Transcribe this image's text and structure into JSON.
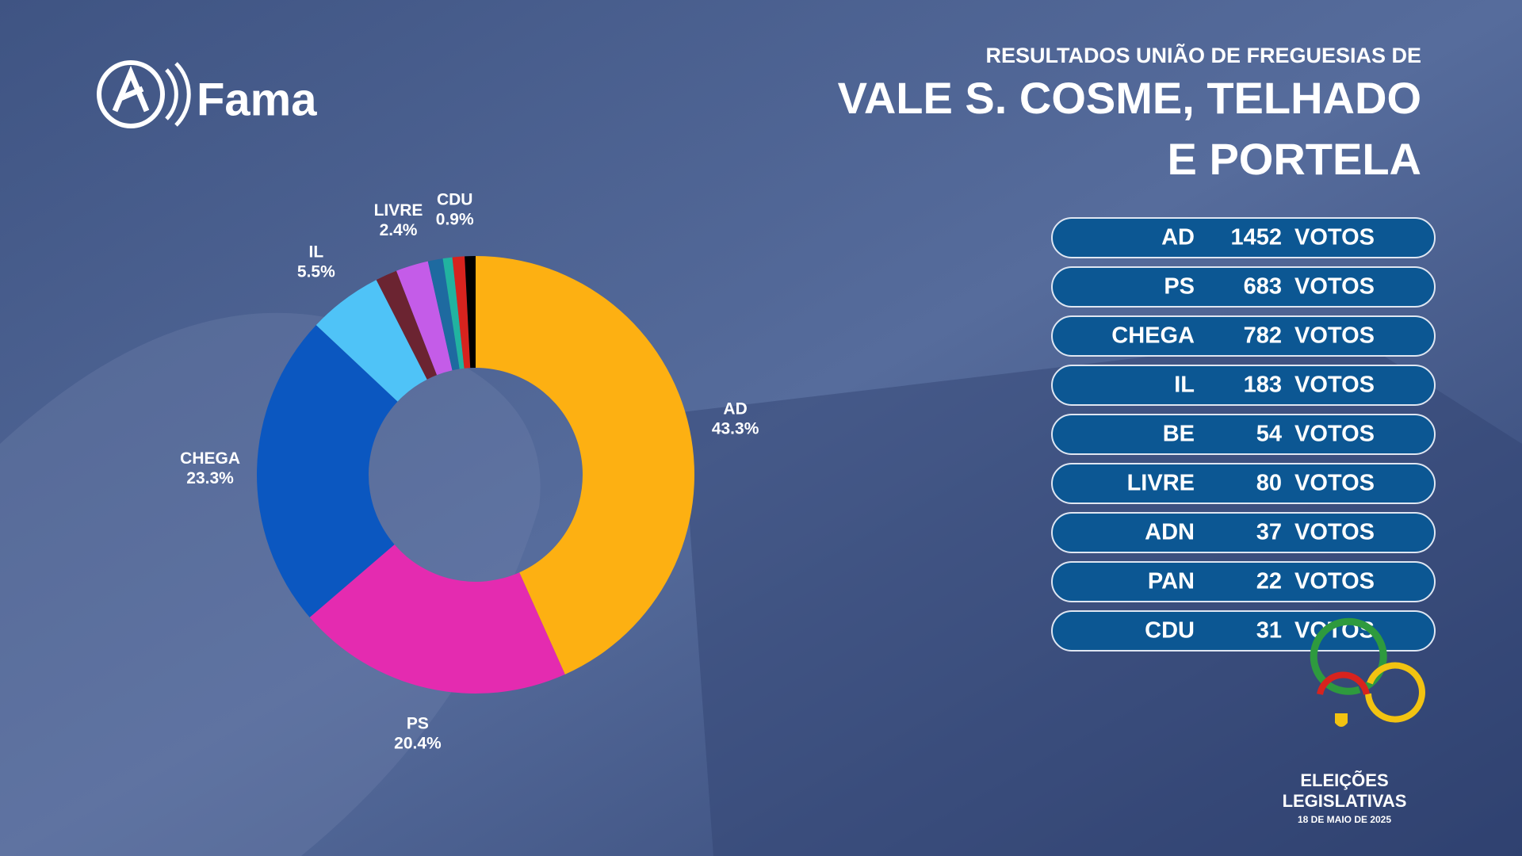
{
  "header": {
    "kicker": "RESULTADOS UNIÃO DE FREGUESIAS DE",
    "title_lines": [
      "VALE S. COSME, TELHADO",
      "E PORTELA"
    ]
  },
  "brand": {
    "name": "Fama"
  },
  "chart_data": {
    "type": "donut",
    "categories": [
      "AD",
      "PS",
      "CHEGA",
      "IL",
      null,
      "LIVRE",
      null,
      null,
      "CDU",
      null
    ],
    "values": [
      43.3,
      20.4,
      23.3,
      5.5,
      1.6,
      2.4,
      1.1,
      0.7,
      0.9,
      0.8
    ],
    "value_labels": [
      "43.3%",
      "20.4%",
      "23.3%",
      "5.5%",
      null,
      "2.4%",
      null,
      null,
      "0.9%",
      null
    ],
    "colors": [
      "#fdb012",
      "#e42bb0",
      "#0b57c0",
      "#4fc3f7",
      "#6b2431",
      "#c45ce8",
      "#1e6aa0",
      "#21b3a0",
      "#d7231e",
      "#000000"
    ]
  },
  "results_table": {
    "unit": "VOTOS",
    "rows": [
      [
        "AD",
        "1452"
      ],
      [
        "PS",
        "683"
      ],
      [
        "CHEGA",
        "782"
      ],
      [
        "IL",
        "183"
      ],
      [
        "BE",
        "54"
      ],
      [
        "LIVRE",
        "80"
      ],
      [
        "ADN",
        "37"
      ],
      [
        "PAN",
        "22"
      ],
      [
        "CDU",
        "31"
      ]
    ]
  },
  "election_logo": {
    "lines": [
      "ELEIÇÕES",
      "LEGISLATIVAS"
    ],
    "date": "18 DE MAIO DE 2025"
  }
}
